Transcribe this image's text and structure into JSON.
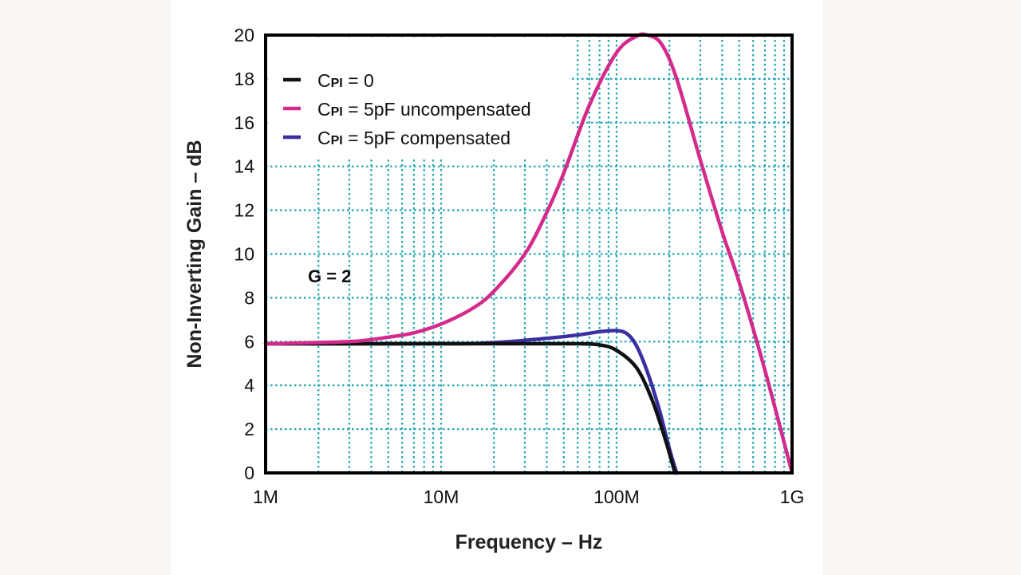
{
  "chart_data": {
    "type": "line",
    "title": "",
    "xlabel": "Frequency – Hz",
    "ylabel": "Non-Inverting Gain – dB",
    "x_scale": "log",
    "xlim": [
      1000000,
      1000000000
    ],
    "ylim": [
      0,
      20
    ],
    "x_ticks": [
      {
        "value": 1000000,
        "label": "1M"
      },
      {
        "value": 10000000,
        "label": "10M"
      },
      {
        "value": 100000000,
        "label": "100M"
      },
      {
        "value": 1000000000,
        "label": "1G"
      }
    ],
    "y_ticks": [
      0,
      2,
      4,
      6,
      8,
      10,
      12,
      14,
      16,
      18,
      20
    ],
    "grid": true,
    "grid_color": "#1aa6b0",
    "legend_position": "top-left",
    "annotation": "G = 2",
    "series": [
      {
        "name": "CPI = 0",
        "legend_main": "C",
        "legend_sub": "PI",
        "legend_rest": " = 0",
        "color": "#111111",
        "x": [
          1000000.0,
          10000000.0,
          30000000.0,
          60000000.0,
          80000000.0,
          100000000.0,
          130000000.0,
          160000000.0,
          190000000.0,
          210000000.0,
          215000000.0
        ],
        "y": [
          5.9,
          5.9,
          5.9,
          5.9,
          5.85,
          5.6,
          4.8,
          3.3,
          1.5,
          0.3,
          0
        ]
      },
      {
        "name": "CPI = 5pF uncompensated",
        "legend_main": "C",
        "legend_sub": "PI",
        "legend_rest": " = 5pF uncompensated",
        "color": "#d42a8c",
        "x": [
          1000000.0,
          3000000.0,
          5000000.0,
          7000000.0,
          10000000.0,
          15000000.0,
          20000000.0,
          30000000.0,
          40000000.0,
          50000000.0,
          70000000.0,
          100000000.0,
          130000000.0,
          150000000.0,
          180000000.0,
          220000000.0,
          300000000.0,
          400000000.0,
          500000000.0,
          700000000.0,
          1000000000.0
        ],
        "y": [
          5.9,
          6.0,
          6.2,
          6.4,
          6.8,
          7.5,
          8.3,
          10.0,
          11.9,
          13.7,
          16.8,
          19.2,
          19.95,
          20.0,
          19.6,
          18.0,
          14.3,
          11.0,
          8.7,
          4.7,
          0
        ]
      },
      {
        "name": "CPI = 5pF compensated",
        "legend_main": "C",
        "legend_sub": "PI",
        "legend_rest": " = 5pF compensated",
        "color": "#3a2fa0",
        "x": [
          1000000.0,
          10000000.0,
          20000000.0,
          40000000.0,
          60000000.0,
          80000000.0,
          100000000.0,
          115000000.0,
          130000000.0,
          150000000.0,
          175000000.0,
          200000000.0,
          220000000.0
        ],
        "y": [
          5.9,
          5.9,
          5.95,
          6.15,
          6.3,
          6.45,
          6.5,
          6.35,
          5.8,
          4.6,
          2.9,
          1.1,
          0
        ]
      }
    ]
  }
}
